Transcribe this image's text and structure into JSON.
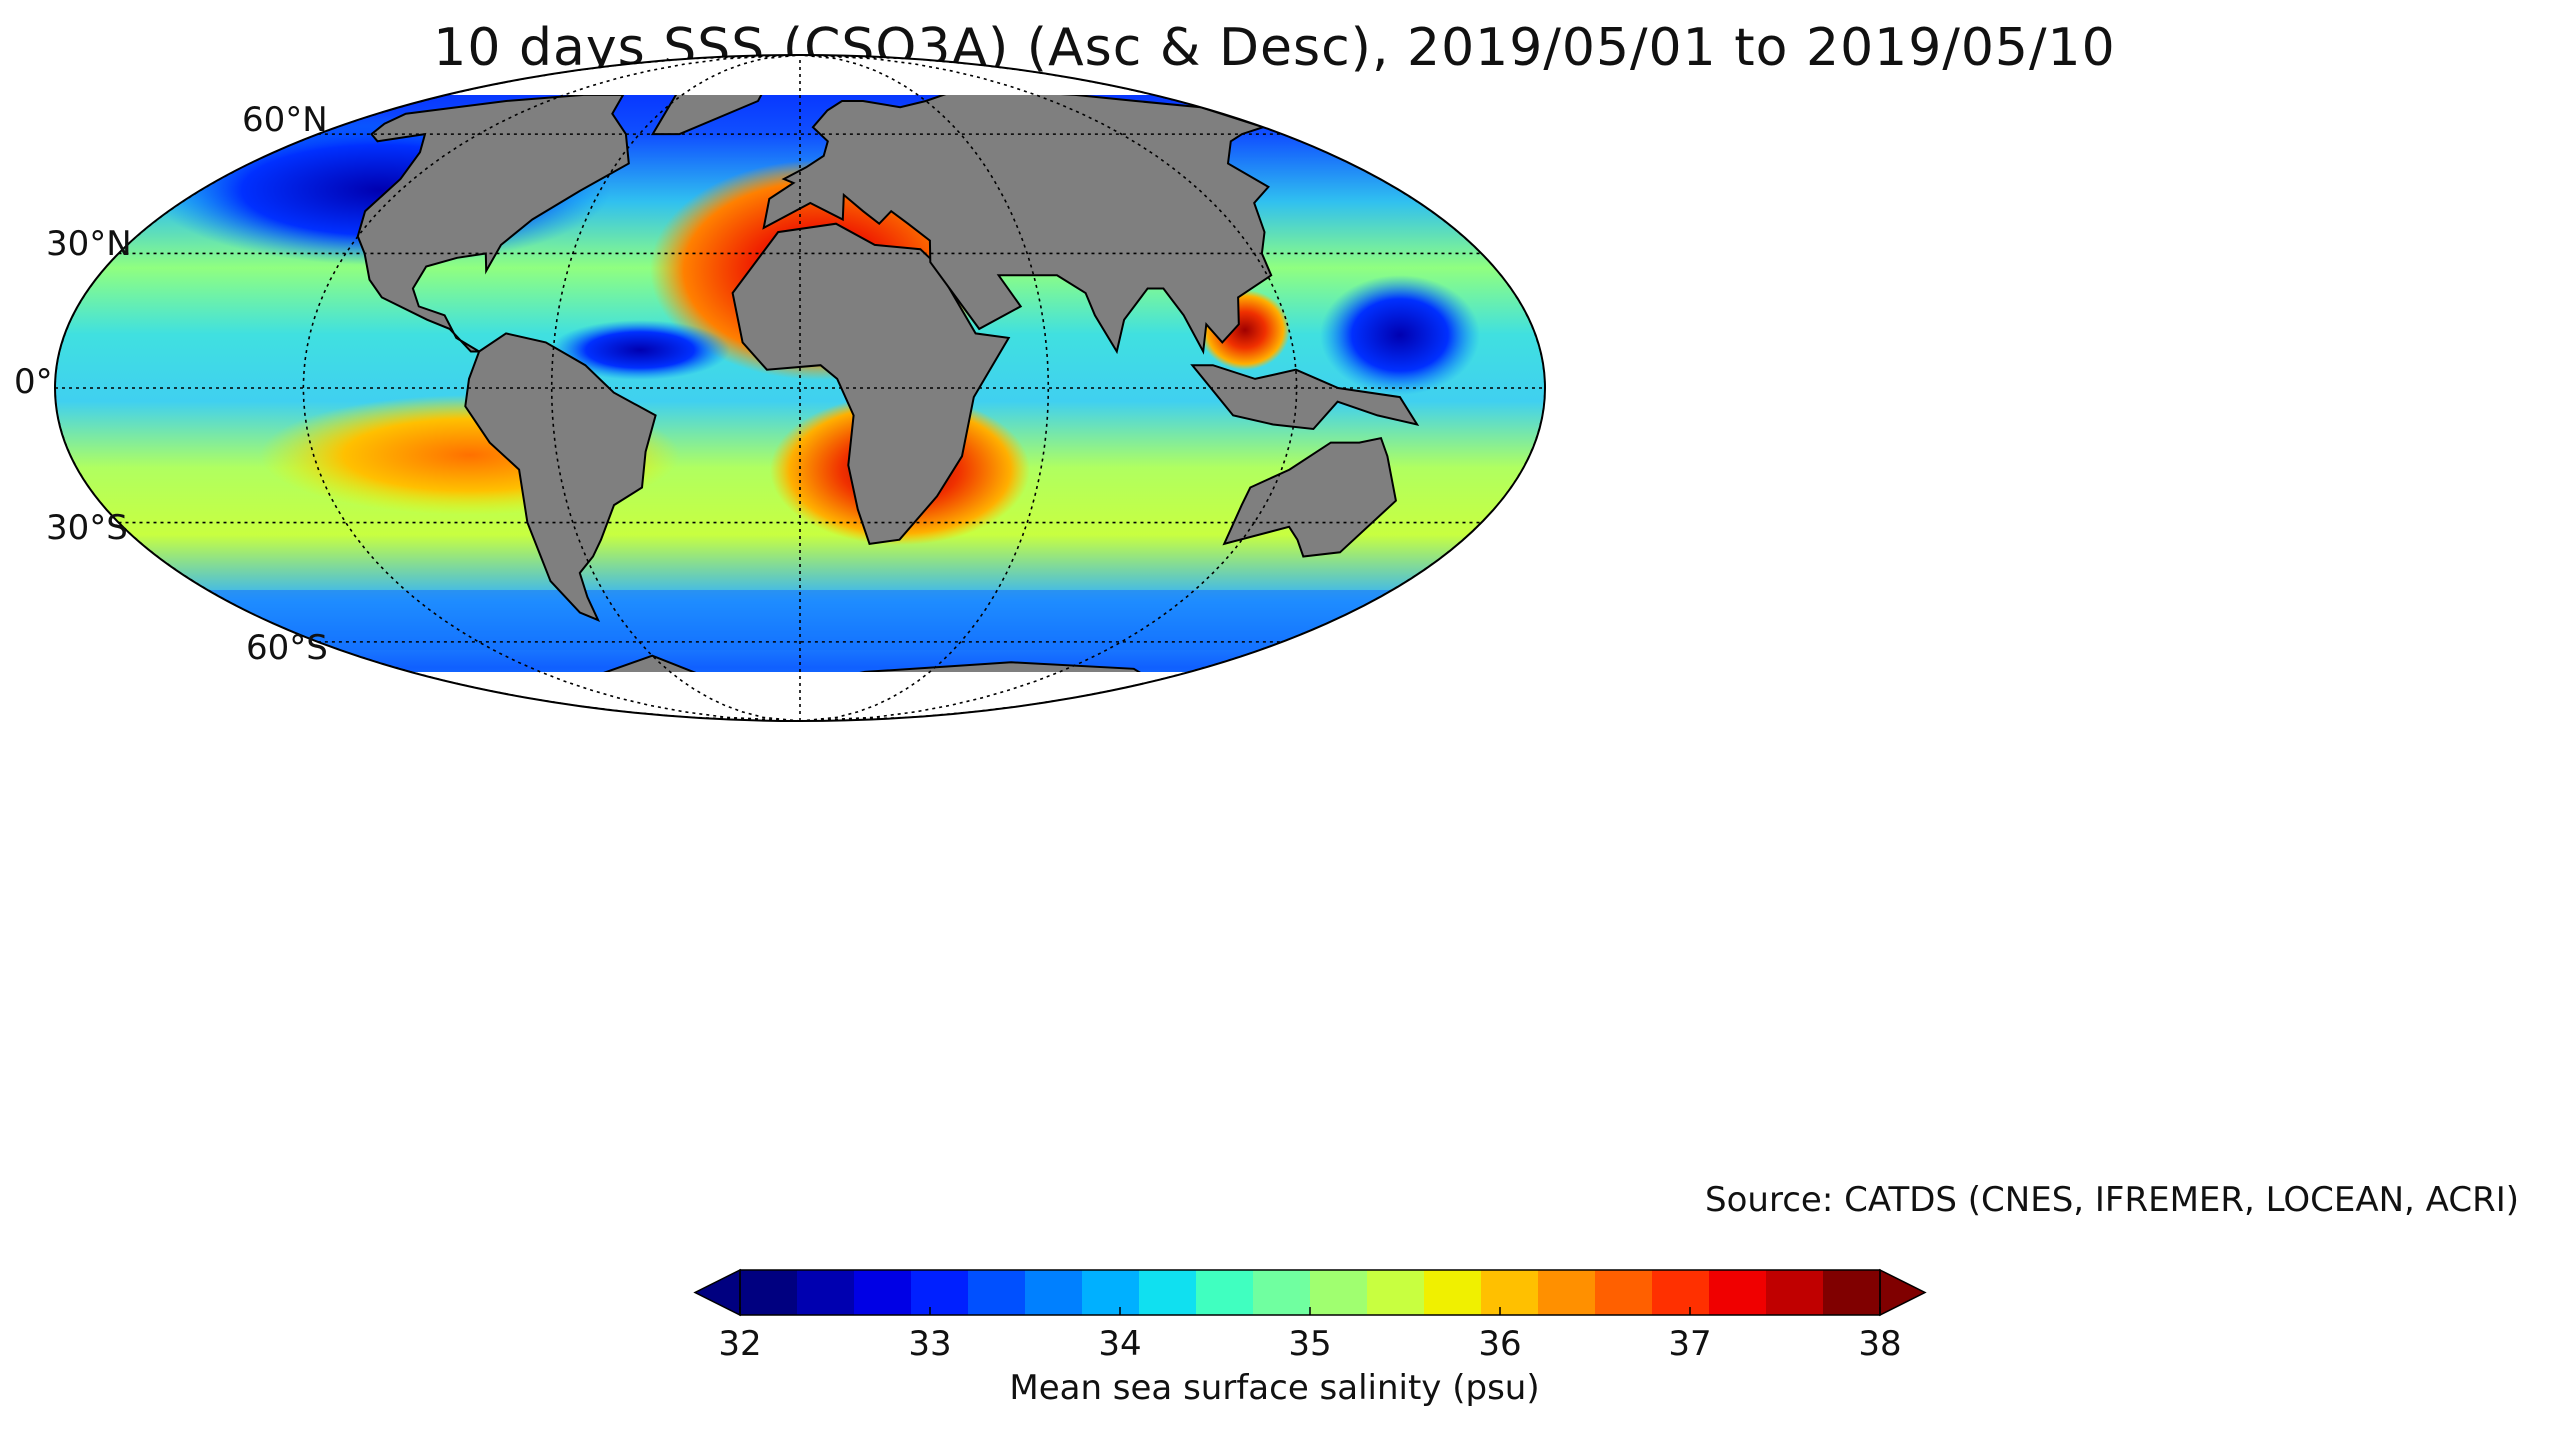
{
  "title": "10 days SSS (CSQ3A) (Asc & Desc), 2019/05/01 to 2019/05/10",
  "map": {
    "projection": "Mollweide",
    "parallel_labels": [
      "60°N",
      "30°N",
      "0°",
      "30°S",
      "60°S"
    ],
    "parallels_deg": [
      60,
      30,
      0,
      -30,
      -60
    ],
    "meridians_deg": [
      -180,
      -120,
      -60,
      0,
      60,
      120,
      180
    ],
    "land_color": "#7f7f7f",
    "no_data_color": "#ffffff"
  },
  "source": "Source: CATDS (CNES, IFREMER, LOCEAN, ACRI)",
  "colorbar": {
    "label": "Mean sea surface salinity (psu)",
    "ticks": [
      "32",
      "33",
      "34",
      "35",
      "36",
      "37",
      "38"
    ],
    "tick_values": [
      32,
      33,
      34,
      35,
      36,
      37,
      38
    ],
    "range": [
      32,
      38
    ],
    "extend": "both",
    "colors": [
      "#000080",
      "#0000b0",
      "#0000e5",
      "#0020ff",
      "#0050ff",
      "#0080ff",
      "#00b0ff",
      "#10e0f0",
      "#40ffc0",
      "#70ffa0",
      "#a0ff70",
      "#c8ff40",
      "#f0f000",
      "#ffc000",
      "#ff9000",
      "#ff6000",
      "#ff3000",
      "#f00000",
      "#c00000",
      "#800000"
    ]
  }
}
